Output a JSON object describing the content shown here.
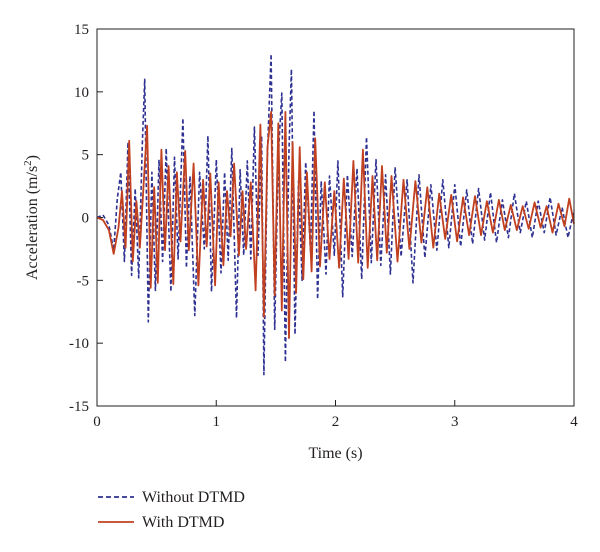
{
  "chart_data": {
    "type": "line",
    "title": "",
    "xlabel": "Time (s)",
    "ylabel_main": "Acceleration (m/s",
    "ylabel_sup": "2",
    "ylabel_tail": ")",
    "xlim": [
      0,
      4
    ],
    "ylim": [
      -15,
      15
    ],
    "x_ticks": [
      0,
      1,
      2,
      3,
      4
    ],
    "x_tick_labels": [
      "0",
      "1",
      "2",
      "3",
      "4"
    ],
    "y_ticks": [
      15,
      10,
      5,
      0,
      -5,
      -10,
      -15
    ],
    "y_tick_labels": [
      "15",
      "10",
      "5",
      "0",
      "-5",
      "-10",
      "-15"
    ],
    "grid": false,
    "legend_position": "bottom-left",
    "series": [
      {
        "name": "Without DTMD",
        "color": "#2e3192",
        "style": "dashed",
        "points": [
          [
            0.0,
            0.0
          ],
          [
            0.05,
            0.2
          ],
          [
            0.1,
            -0.6
          ],
          [
            0.14,
            -2.6
          ],
          [
            0.17,
            1.5
          ],
          [
            0.2,
            3.6
          ],
          [
            0.23,
            -3.5
          ],
          [
            0.26,
            6.0
          ],
          [
            0.29,
            -4.6
          ],
          [
            0.32,
            2.3
          ],
          [
            0.35,
            -4.8
          ],
          [
            0.38,
            5.8
          ],
          [
            0.4,
            11.0
          ],
          [
            0.43,
            -8.3
          ],
          [
            0.46,
            3.6
          ],
          [
            0.49,
            -5.8
          ],
          [
            0.52,
            4.6
          ],
          [
            0.55,
            -3.5
          ],
          [
            0.58,
            5.5
          ],
          [
            0.62,
            -5.9
          ],
          [
            0.65,
            4.8
          ],
          [
            0.68,
            -3.3
          ],
          [
            0.72,
            7.9
          ],
          [
            0.75,
            -4.0
          ],
          [
            0.78,
            3.3
          ],
          [
            0.82,
            -7.8
          ],
          [
            0.86,
            3.6
          ],
          [
            0.9,
            -2.5
          ],
          [
            0.93,
            6.5
          ],
          [
            0.96,
            -5.9
          ],
          [
            1.0,
            4.6
          ],
          [
            1.04,
            -4.4
          ],
          [
            1.07,
            3.6
          ],
          [
            1.1,
            -3.4
          ],
          [
            1.13,
            5.5
          ],
          [
            1.17,
            -8.0
          ],
          [
            1.2,
            3.8
          ],
          [
            1.23,
            -3.0
          ],
          [
            1.26,
            4.5
          ],
          [
            1.29,
            -3.3
          ],
          [
            1.32,
            7.2
          ],
          [
            1.35,
            -3.0
          ],
          [
            1.38,
            6.5
          ],
          [
            1.4,
            -12.5
          ],
          [
            1.43,
            5.3
          ],
          [
            1.46,
            13.0
          ],
          [
            1.49,
            -8.9
          ],
          [
            1.52,
            4.9
          ],
          [
            1.55,
            9.9
          ],
          [
            1.58,
            -11.5
          ],
          [
            1.61,
            5.4
          ],
          [
            1.63,
            11.8
          ],
          [
            1.66,
            -9.3
          ],
          [
            1.69,
            2.9
          ],
          [
            1.72,
            -5.0
          ],
          [
            1.75,
            4.4
          ],
          [
            1.79,
            -2.6
          ],
          [
            1.82,
            8.5
          ],
          [
            1.85,
            -6.5
          ],
          [
            1.88,
            2.9
          ],
          [
            1.92,
            -4.5
          ],
          [
            1.95,
            3.3
          ],
          [
            1.99,
            -3.0
          ],
          [
            2.02,
            4.5
          ],
          [
            2.06,
            -6.3
          ],
          [
            2.1,
            3.4
          ],
          [
            2.14,
            -3.1
          ],
          [
            2.18,
            3.9
          ],
          [
            2.22,
            -4.9
          ],
          [
            2.26,
            6.4
          ],
          [
            2.3,
            -3.6
          ],
          [
            2.34,
            4.6
          ],
          [
            2.38,
            -3.8
          ],
          [
            2.42,
            3.4
          ],
          [
            2.46,
            -4.5
          ],
          [
            2.5,
            4.0
          ],
          [
            2.55,
            -3.1
          ],
          [
            2.6,
            3.0
          ],
          [
            2.65,
            -5.2
          ],
          [
            2.7,
            3.4
          ],
          [
            2.75,
            -3.2
          ],
          [
            2.8,
            2.6
          ],
          [
            2.85,
            -2.6
          ],
          [
            2.9,
            3.0
          ],
          [
            2.95,
            -2.4
          ],
          [
            3.0,
            2.6
          ],
          [
            3.05,
            -2.3
          ],
          [
            3.1,
            2.2
          ],
          [
            3.15,
            -2.1
          ],
          [
            3.2,
            2.3
          ],
          [
            3.25,
            -1.8
          ],
          [
            3.3,
            2.0
          ],
          [
            3.35,
            -2.0
          ],
          [
            3.4,
            1.4
          ],
          [
            3.45,
            -1.6
          ],
          [
            3.5,
            1.9
          ],
          [
            3.55,
            -1.2
          ],
          [
            3.6,
            1.3
          ],
          [
            3.65,
            -1.6
          ],
          [
            3.7,
            1.3
          ],
          [
            3.75,
            -1.2
          ],
          [
            3.8,
            1.6
          ],
          [
            3.85,
            -1.4
          ],
          [
            3.9,
            0.8
          ],
          [
            3.95,
            -1.6
          ],
          [
            4.0,
            0.6
          ]
        ]
      },
      {
        "name": "With DTMD",
        "color": "#c1401f",
        "style": "solid",
        "points": [
          [
            0.0,
            0.0
          ],
          [
            0.05,
            -0.2
          ],
          [
            0.1,
            -1.0
          ],
          [
            0.14,
            -2.9
          ],
          [
            0.18,
            -0.8
          ],
          [
            0.21,
            2.1
          ],
          [
            0.24,
            -2.4
          ],
          [
            0.27,
            6.1
          ],
          [
            0.3,
            -3.5
          ],
          [
            0.33,
            1.3
          ],
          [
            0.36,
            -2.4
          ],
          [
            0.4,
            4.1
          ],
          [
            0.42,
            7.3
          ],
          [
            0.45,
            -5.6
          ],
          [
            0.48,
            2.4
          ],
          [
            0.51,
            -5.2
          ],
          [
            0.54,
            5.4
          ],
          [
            0.57,
            -2.6
          ],
          [
            0.6,
            4.1
          ],
          [
            0.64,
            -5.3
          ],
          [
            0.67,
            3.6
          ],
          [
            0.7,
            -1.9
          ],
          [
            0.74,
            5.3
          ],
          [
            0.77,
            -2.6
          ],
          [
            0.81,
            4.3
          ],
          [
            0.85,
            -5.4
          ],
          [
            0.89,
            3.0
          ],
          [
            0.92,
            -2.3
          ],
          [
            0.95,
            3.5
          ],
          [
            0.99,
            -5.4
          ],
          [
            1.02,
            2.8
          ],
          [
            1.06,
            -3.8
          ],
          [
            1.09,
            2.1
          ],
          [
            1.12,
            -1.5
          ],
          [
            1.15,
            4.3
          ],
          [
            1.19,
            -3.0
          ],
          [
            1.22,
            2.1
          ],
          [
            1.25,
            -2.5
          ],
          [
            1.29,
            2.8
          ],
          [
            1.33,
            -5.8
          ],
          [
            1.37,
            7.4
          ],
          [
            1.4,
            -7.9
          ],
          [
            1.43,
            5.6
          ],
          [
            1.46,
            8.4
          ],
          [
            1.49,
            -6.2
          ],
          [
            1.52,
            7.5
          ],
          [
            1.55,
            -7.4
          ],
          [
            1.58,
            8.4
          ],
          [
            1.61,
            -9.6
          ],
          [
            1.64,
            6.0
          ],
          [
            1.67,
            -6.0
          ],
          [
            1.7,
            5.6
          ],
          [
            1.73,
            -4.9
          ],
          [
            1.76,
            3.6
          ],
          [
            1.8,
            -4.3
          ],
          [
            1.83,
            6.3
          ],
          [
            1.87,
            -3.9
          ],
          [
            1.91,
            2.8
          ],
          [
            1.95,
            -3.3
          ],
          [
            1.99,
            2.1
          ],
          [
            2.03,
            -4.0
          ],
          [
            2.07,
            3.1
          ],
          [
            2.11,
            -3.3
          ],
          [
            2.15,
            4.5
          ],
          [
            2.19,
            -3.6
          ],
          [
            2.23,
            5.4
          ],
          [
            2.27,
            -4.0
          ],
          [
            2.31,
            3.3
          ],
          [
            2.35,
            -3.4
          ],
          [
            2.39,
            4.1
          ],
          [
            2.43,
            -2.8
          ],
          [
            2.47,
            3.3
          ],
          [
            2.52,
            -3.5
          ],
          [
            2.57,
            3.0
          ],
          [
            2.62,
            -2.5
          ],
          [
            2.67,
            2.9
          ],
          [
            2.72,
            -2.0
          ],
          [
            2.77,
            2.4
          ],
          [
            2.82,
            -2.4
          ],
          [
            2.87,
            1.9
          ],
          [
            2.92,
            -1.7
          ],
          [
            2.97,
            1.8
          ],
          [
            3.02,
            -1.9
          ],
          [
            3.07,
            1.6
          ],
          [
            3.12,
            -1.4
          ],
          [
            3.17,
            1.7
          ],
          [
            3.22,
            -1.4
          ],
          [
            3.27,
            1.3
          ],
          [
            3.32,
            -1.2
          ],
          [
            3.37,
            1.4
          ],
          [
            3.42,
            -1.0
          ],
          [
            3.47,
            1.0
          ],
          [
            3.52,
            -1.0
          ],
          [
            3.57,
            0.9
          ],
          [
            3.62,
            -0.9
          ],
          [
            3.67,
            1.2
          ],
          [
            3.72,
            -0.8
          ],
          [
            3.77,
            0.9
          ],
          [
            3.82,
            -1.2
          ],
          [
            3.87,
            1.1
          ],
          [
            3.92,
            -0.7
          ],
          [
            3.96,
            1.5
          ],
          [
            4.0,
            -0.5
          ]
        ]
      }
    ]
  }
}
